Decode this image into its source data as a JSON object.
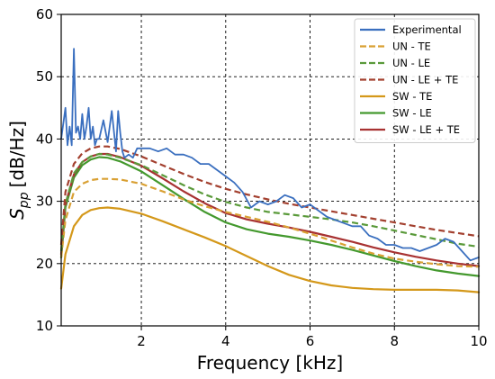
{
  "chart_data": {
    "type": "line",
    "title": "",
    "xlabel": "Frequency [kHz]",
    "ylabel_main": "S",
    "ylabel_sub": "pp",
    "ylabel_unit": "[dB/Hz]",
    "xlim": [
      0.1,
      10
    ],
    "ylim": [
      10,
      60
    ],
    "xticks": [
      2,
      4,
      6,
      8,
      10
    ],
    "yticks": [
      10,
      20,
      30,
      40,
      50,
      60
    ],
    "grid": true,
    "legend_position": "top-right",
    "series": [
      {
        "name": "Experimental",
        "color": "#3a6fbf",
        "dash": "solid",
        "x": [
          0.1,
          0.2,
          0.25,
          0.3,
          0.35,
          0.4,
          0.45,
          0.5,
          0.55,
          0.6,
          0.65,
          0.7,
          0.75,
          0.8,
          0.85,
          0.9,
          0.95,
          1.0,
          1.1,
          1.2,
          1.3,
          1.4,
          1.45,
          1.5,
          1.55,
          1.6,
          1.7,
          1.8,
          1.9,
          2.0,
          2.2,
          2.4,
          2.6,
          2.8,
          3.0,
          3.2,
          3.4,
          3.6,
          3.8,
          4.0,
          4.2,
          4.4,
          4.6,
          4.8,
          5.0,
          5.2,
          5.4,
          5.6,
          5.8,
          6.0,
          6.2,
          6.4,
          6.6,
          6.8,
          7.0,
          7.2,
          7.4,
          7.6,
          7.8,
          8.0,
          8.2,
          8.4,
          8.6,
          8.8,
          9.0,
          9.2,
          9.4,
          9.6,
          9.8,
          10.0
        ],
        "y": [
          40,
          45,
          39,
          42,
          39,
          54.5,
          41,
          42,
          40,
          44,
          40,
          42,
          45,
          40,
          42,
          39,
          40,
          40,
          43,
          39.5,
          44.5,
          38,
          44.5,
          41,
          38,
          37,
          37.5,
          37,
          38.5,
          38.5,
          38.5,
          38,
          38.5,
          37.5,
          37.5,
          37,
          36,
          36,
          35,
          34,
          33,
          31.5,
          29,
          30,
          29.5,
          30,
          31,
          30.5,
          29,
          29.5,
          28.5,
          27.5,
          27,
          26.5,
          26,
          26,
          24.5,
          24,
          23,
          23,
          22.5,
          22.5,
          22,
          22.5,
          23,
          24,
          23.5,
          22,
          20.5,
          21
        ]
      },
      {
        "name": "UN - TE",
        "color": "#d9a033",
        "dash": "dashed",
        "x": [
          0.1,
          0.2,
          0.4,
          0.6,
          0.8,
          1.0,
          1.2,
          1.5,
          2.0,
          2.5,
          3.0,
          3.5,
          4.0,
          4.5,
          5.0,
          5.5,
          6.0,
          6.5,
          7.0,
          7.5,
          8.0,
          8.5,
          9.0,
          9.5,
          10.0
        ],
        "y": [
          21,
          27,
          31.5,
          32.8,
          33.4,
          33.6,
          33.6,
          33.5,
          32.8,
          31.6,
          30.3,
          29.2,
          28.3,
          27.5,
          26.7,
          25.8,
          24.8,
          23.7,
          22.6,
          21.6,
          20.8,
          20.3,
          19.9,
          19.6,
          19.5
        ]
      },
      {
        "name": "UN - LE",
        "color": "#5a9a3a",
        "dash": "dashed",
        "x": [
          0.1,
          0.2,
          0.4,
          0.6,
          0.8,
          1.0,
          1.2,
          1.5,
          2.0,
          2.5,
          3.0,
          3.5,
          4.0,
          4.5,
          5.0,
          5.5,
          6.0,
          6.5,
          7.0,
          7.5,
          8.0,
          8.5,
          9.0,
          9.5,
          10.0
        ],
        "y": [
          22,
          29.5,
          34.5,
          36.3,
          37.2,
          37.6,
          37.5,
          37,
          35.8,
          34.2,
          32.6,
          31.1,
          29.9,
          29,
          28.3,
          27.9,
          27.5,
          27.1,
          26.6,
          26.0,
          25.3,
          24.6,
          23.9,
          23.2,
          22.7
        ]
      },
      {
        "name": "UN - LE + TE",
        "color": "#a3402f",
        "dash": "dashed",
        "x": [
          0.1,
          0.2,
          0.4,
          0.6,
          0.8,
          1.0,
          1.2,
          1.5,
          2.0,
          2.5,
          3.0,
          3.5,
          4.0,
          4.5,
          5.0,
          5.5,
          6.0,
          6.5,
          7.0,
          7.5,
          8.0,
          8.5,
          9.0,
          9.5,
          10.0
        ],
        "y": [
          23,
          31.5,
          36,
          37.7,
          38.5,
          38.8,
          38.8,
          38.4,
          37.2,
          35.8,
          34.4,
          33.1,
          32,
          31.1,
          30.3,
          29.6,
          29,
          28.4,
          27.8,
          27.2,
          26.6,
          26.0,
          25.4,
          24.9,
          24.4
        ]
      },
      {
        "name": "SW - TE",
        "color": "#d4981a",
        "dash": "solid",
        "x": [
          0.1,
          0.2,
          0.4,
          0.6,
          0.8,
          1.0,
          1.2,
          1.5,
          2.0,
          2.5,
          3.0,
          3.5,
          4.0,
          4.5,
          5.0,
          5.5,
          6.0,
          6.5,
          7.0,
          7.5,
          8.0,
          8.5,
          9.0,
          9.5,
          10.0
        ],
        "y": [
          16,
          21.5,
          26,
          27.8,
          28.6,
          28.9,
          29,
          28.8,
          28,
          26.8,
          25.5,
          24.2,
          22.8,
          21.2,
          19.6,
          18.2,
          17.2,
          16.5,
          16.1,
          15.9,
          15.8,
          15.8,
          15.8,
          15.7,
          15.4
        ]
      },
      {
        "name": "SW - LE",
        "color": "#44992e",
        "dash": "solid",
        "x": [
          0.1,
          0.2,
          0.4,
          0.6,
          0.8,
          1.0,
          1.2,
          1.5,
          2.0,
          2.5,
          3.0,
          3.5,
          4.0,
          4.5,
          5.0,
          5.5,
          6.0,
          6.5,
          7.0,
          7.5,
          8.0,
          8.5,
          9.0,
          9.5,
          10.0
        ],
        "y": [
          21,
          29,
          33.8,
          35.8,
          36.7,
          37.1,
          37,
          36.4,
          34.8,
          32.6,
          30.4,
          28.3,
          26.6,
          25.5,
          24.8,
          24.3,
          23.7,
          23.0,
          22.2,
          21.3,
          20.4,
          19.6,
          18.9,
          18.4,
          18.0
        ]
      },
      {
        "name": "SW - LE + TE",
        "color": "#a83232",
        "dash": "solid",
        "x": [
          0.1,
          0.2,
          0.4,
          0.6,
          0.8,
          1.0,
          1.2,
          1.5,
          2.0,
          2.5,
          3.0,
          3.5,
          4.0,
          4.5,
          5.0,
          5.5,
          6.0,
          6.5,
          7.0,
          7.5,
          8.0,
          8.5,
          9.0,
          9.5,
          10.0
        ],
        "y": [
          21.5,
          29.5,
          34.3,
          36.3,
          37.2,
          37.6,
          37.6,
          37.1,
          35.7,
          33.7,
          31.6,
          29.7,
          28.1,
          27.1,
          26.4,
          25.8,
          25.1,
          24.3,
          23.5,
          22.6,
          21.8,
          21.1,
          20.5,
          20.0,
          19.6
        ]
      }
    ]
  }
}
